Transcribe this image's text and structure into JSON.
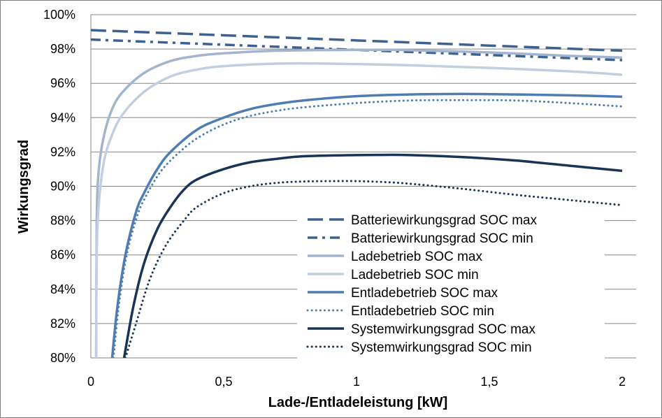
{
  "chart_data": {
    "type": "line",
    "title": "",
    "xlabel": "Lade-/Entladeleistung [kW]",
    "ylabel": "Wirkungsgrad",
    "xlim": [
      0,
      2
    ],
    "ylim": [
      80,
      100
    ],
    "x_ticks": [
      0,
      0.5,
      1,
      1.5,
      2
    ],
    "x_tick_labels": [
      "0",
      "0,5",
      "1",
      "1,5",
      "2"
    ],
    "y_ticks": [
      80,
      82,
      84,
      86,
      88,
      90,
      92,
      94,
      96,
      98,
      100
    ],
    "y_tick_labels": [
      "80%",
      "82%",
      "84%",
      "86%",
      "88%",
      "90%",
      "92%",
      "94%",
      "96%",
      "98%",
      "100%"
    ],
    "grid": "horizontal",
    "legend_position": "bottom-right",
    "series": [
      {
        "name": "Batteriewirkungsgrad SOC max",
        "color": "#3f6191",
        "dash": "long-dash",
        "width": 3.5,
        "points": [
          [
            0,
            99.1
          ],
          [
            0.5,
            98.8
          ],
          [
            1,
            98.5
          ],
          [
            1.5,
            98.2
          ],
          [
            2,
            97.9
          ]
        ]
      },
      {
        "name": "Batteriewirkungsgrad SOC min",
        "color": "#3f6191",
        "dash": "dash-dot",
        "width": 3.5,
        "points": [
          [
            0,
            98.55
          ],
          [
            0.5,
            98.25
          ],
          [
            1,
            97.95
          ],
          [
            1.5,
            97.65
          ],
          [
            2,
            97.35
          ]
        ]
      },
      {
        "name": "Ladebetrieb SOC max",
        "color": "#a3b4cf",
        "dash": "solid",
        "width": 3.5,
        "points": [
          [
            0.02,
            80
          ],
          [
            0.022,
            88
          ],
          [
            0.03,
            91
          ],
          [
            0.05,
            93
          ],
          [
            0.08,
            94.5
          ],
          [
            0.12,
            95.5
          ],
          [
            0.2,
            96.6
          ],
          [
            0.3,
            97.3
          ],
          [
            0.4,
            97.6
          ],
          [
            0.5,
            97.75
          ],
          [
            0.7,
            97.9
          ],
          [
            1,
            97.95
          ],
          [
            1.2,
            97.93
          ],
          [
            1.5,
            97.8
          ],
          [
            1.8,
            97.6
          ],
          [
            2,
            97.5
          ]
        ]
      },
      {
        "name": "Ladebetrieb SOC min",
        "color": "#c3cfe1",
        "dash": "solid",
        "width": 3.5,
        "points": [
          [
            0.02,
            80
          ],
          [
            0.022,
            86
          ],
          [
            0.03,
            89
          ],
          [
            0.05,
            91.5
          ],
          [
            0.08,
            93
          ],
          [
            0.12,
            94.2
          ],
          [
            0.2,
            95.5
          ],
          [
            0.3,
            96.4
          ],
          [
            0.4,
            96.8
          ],
          [
            0.5,
            97
          ],
          [
            0.7,
            97.15
          ],
          [
            0.9,
            97.15
          ],
          [
            1.2,
            97.05
          ],
          [
            1.5,
            96.9
          ],
          [
            1.8,
            96.7
          ],
          [
            2,
            96.5
          ]
        ]
      },
      {
        "name": "Entladebetrieb SOC max",
        "color": "#4f7db3",
        "dash": "solid",
        "width": 3.5,
        "points": [
          [
            0.08,
            80
          ],
          [
            0.1,
            83
          ],
          [
            0.13,
            86
          ],
          [
            0.17,
            88.5
          ],
          [
            0.2,
            89.6
          ],
          [
            0.25,
            91
          ],
          [
            0.3,
            92
          ],
          [
            0.4,
            93.3
          ],
          [
            0.5,
            94
          ],
          [
            0.6,
            94.5
          ],
          [
            0.7,
            94.8
          ],
          [
            0.8,
            95
          ],
          [
            1,
            95.25
          ],
          [
            1.2,
            95.35
          ],
          [
            1.4,
            95.38
          ],
          [
            1.6,
            95.35
          ],
          [
            1.8,
            95.3
          ],
          [
            2,
            95.22
          ]
        ]
      },
      {
        "name": "Entladebetrieb SOC min",
        "color": "#4f7db3",
        "dash": "dotted",
        "width": 3,
        "points": [
          [
            0.085,
            80
          ],
          [
            0.105,
            83
          ],
          [
            0.135,
            86
          ],
          [
            0.175,
            88.3
          ],
          [
            0.21,
            89.5
          ],
          [
            0.26,
            90.8
          ],
          [
            0.32,
            91.8
          ],
          [
            0.4,
            92.8
          ],
          [
            0.5,
            93.6
          ],
          [
            0.6,
            94.1
          ],
          [
            0.7,
            94.4
          ],
          [
            0.8,
            94.6
          ],
          [
            1,
            94.85
          ],
          [
            1.2,
            95
          ],
          [
            1.4,
            95.02
          ],
          [
            1.6,
            95
          ],
          [
            1.8,
            94.85
          ],
          [
            2,
            94.65
          ]
        ]
      },
      {
        "name": "Systemwirkungsgrad SOC max",
        "color": "#1a3456",
        "dash": "solid",
        "width": 3.5,
        "points": [
          [
            0.125,
            80
          ],
          [
            0.16,
            83
          ],
          [
            0.2,
            85.5
          ],
          [
            0.25,
            87.5
          ],
          [
            0.3,
            88.8
          ],
          [
            0.35,
            89.8
          ],
          [
            0.4,
            90.4
          ],
          [
            0.5,
            91
          ],
          [
            0.6,
            91.4
          ],
          [
            0.7,
            91.6
          ],
          [
            0.8,
            91.75
          ],
          [
            1,
            91.82
          ],
          [
            1.1,
            91.83
          ],
          [
            1.2,
            91.82
          ],
          [
            1.4,
            91.7
          ],
          [
            1.6,
            91.5
          ],
          [
            1.8,
            91.2
          ],
          [
            2,
            90.9
          ]
        ]
      },
      {
        "name": "Systemwirkungsgrad SOC min",
        "color": "#1a3456",
        "dash": "dotted",
        "width": 3,
        "points": [
          [
            0.13,
            80
          ],
          [
            0.17,
            82
          ],
          [
            0.22,
            84.5
          ],
          [
            0.28,
            86.5
          ],
          [
            0.35,
            88
          ],
          [
            0.4,
            88.8
          ],
          [
            0.5,
            89.6
          ],
          [
            0.6,
            90
          ],
          [
            0.7,
            90.2
          ],
          [
            0.8,
            90.28
          ],
          [
            0.9,
            90.3
          ],
          [
            1,
            90.3
          ],
          [
            1.1,
            90.25
          ],
          [
            1.2,
            90.15
          ],
          [
            1.4,
            89.85
          ],
          [
            1.6,
            89.5
          ],
          [
            1.8,
            89.2
          ],
          [
            2,
            88.9
          ]
        ]
      }
    ]
  }
}
